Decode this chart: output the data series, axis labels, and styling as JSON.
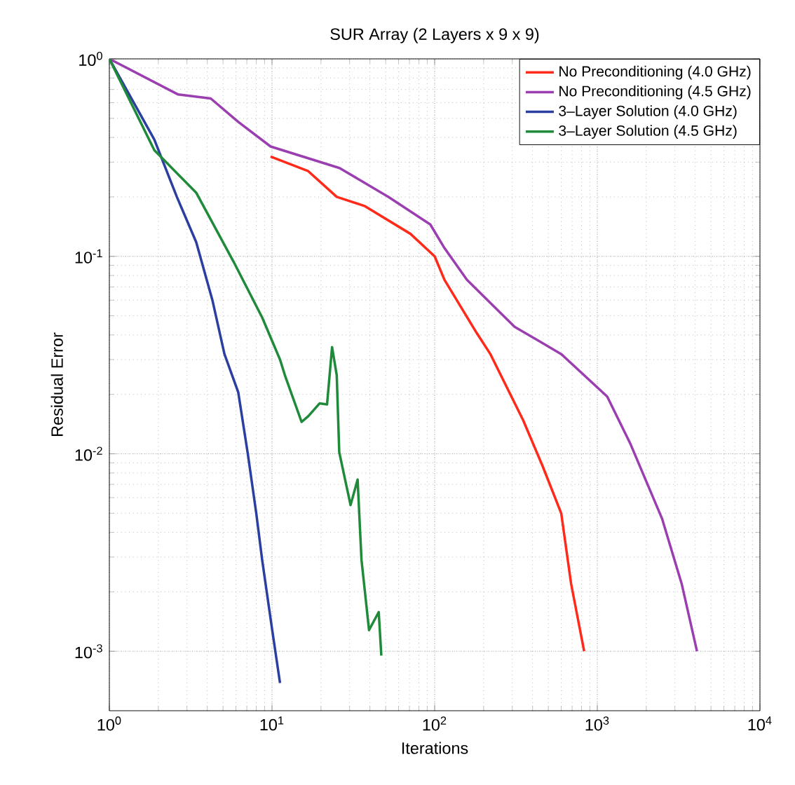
{
  "chart_data": {
    "type": "line",
    "title": "SUR Array (2 Layers x 9 x 9)",
    "xlabel": "Iterations",
    "ylabel": "Residual Error",
    "log": "xy",
    "grid": true,
    "legend": "top right",
    "xlim": [
      1,
      10000
    ],
    "ylim": [
      0.0005,
      1
    ],
    "xticks": [
      {
        "value": 1,
        "label": "10$^{0}$"
      },
      {
        "value": 10,
        "label": "10$^{1}$"
      },
      {
        "value": 100,
        "label": "10$^{2}$"
      },
      {
        "value": 1000,
        "label": "10$^{3}$"
      },
      {
        "value": 10000,
        "label": "10$^{4}$"
      }
    ],
    "yticks": [
      {
        "value": 0.001,
        "label": "10$^{-3}$"
      },
      {
        "value": 0.01,
        "label": "10$^{-2}$"
      },
      {
        "value": 0.1,
        "label": "10$^{-1}$"
      },
      {
        "value": 1,
        "label": "10$^{0}$"
      }
    ],
    "series": [
      {
        "name": "No Preconditioning (4.0 GHz)",
        "color": "#ff2a1a",
        "x": [
          9.8,
          16.7,
          25,
          37,
          71,
          100,
          115,
          181,
          220,
          350,
          460,
          600,
          690,
          830
        ],
        "values": [
          0.32,
          0.27,
          0.2,
          0.18,
          0.13,
          0.1,
          0.076,
          0.041,
          0.032,
          0.0148,
          0.0087,
          0.005,
          0.0022,
          0.001
        ]
      },
      {
        "name": "No Preconditioning (4.5 GHz)",
        "color": "#9b3fb0",
        "x": [
          1,
          2.65,
          4.2,
          6.2,
          9.8,
          26,
          52,
          94,
          115,
          158,
          310,
          600,
          1150,
          1600,
          2500,
          3300,
          4100
        ],
        "values": [
          1,
          0.66,
          0.63,
          0.48,
          0.36,
          0.28,
          0.2,
          0.145,
          0.11,
          0.076,
          0.044,
          0.032,
          0.0195,
          0.0112,
          0.0047,
          0.0022,
          0.001
        ]
      },
      {
        "name": "3–Layer Solution (4.0 GHz)",
        "color": "#2b3fa0",
        "x": [
          1,
          1.89,
          2.6,
          3.42,
          4.3,
          5.1,
          6.2,
          7.1,
          8.0,
          8.7,
          10,
          11.2
        ],
        "values": [
          1,
          0.39,
          0.2,
          0.118,
          0.06,
          0.032,
          0.0205,
          0.01,
          0.005,
          0.0029,
          0.0013,
          0.00069
        ]
      },
      {
        "name": "3–Layer Solution (4.5 GHz)",
        "color": "#1f8a3a",
        "x": [
          1,
          1.89,
          3.42,
          5.8,
          8.7,
          11.2,
          12,
          15.2,
          16.7,
          19.6,
          21.8,
          23.4,
          25,
          25.9,
          30.4,
          33.6,
          35.5,
          39.5,
          45.3,
          47
        ],
        "values": [
          1,
          0.345,
          0.21,
          0.094,
          0.049,
          0.03,
          0.025,
          0.0145,
          0.0155,
          0.018,
          0.0178,
          0.0347,
          0.025,
          0.0102,
          0.0055,
          0.0074,
          0.0029,
          0.00128,
          0.00158,
          0.00095
        ]
      }
    ]
  }
}
